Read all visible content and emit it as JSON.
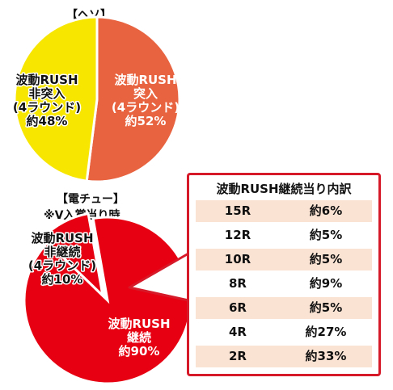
{
  "colors": {
    "heso_rush": "#e8633f",
    "heso_non_rush": "#f7e600",
    "denchu_continue": "#e60012",
    "denchu_non_continue": "#e60012",
    "panel_border": "#d61a2a",
    "row_fill": "#fbe3d3",
    "label_text_light": "#ffffff",
    "label_text_dark": "#111111"
  },
  "heso": {
    "heading": "【ヘソ】"
  },
  "denchu": {
    "heading": "【電チュー】",
    "subheading": "※V入賞当り時"
  },
  "chart_data": [
    {
      "type": "pie",
      "title": "【ヘソ】",
      "slices": [
        {
          "label_lines": [
            "波動RUSH",
            "突入",
            "(4ラウンド)",
            "約52%"
          ],
          "value": 52
        },
        {
          "label_lines": [
            "波動RUSH",
            "非突入",
            "(4ラウンド)",
            "約48%"
          ],
          "value": 48
        }
      ]
    },
    {
      "type": "pie",
      "title": "【電チュー】",
      "subtitle": "※V入賞当り時",
      "slices": [
        {
          "label_lines": [
            "波動RUSH",
            "継続",
            "約90%"
          ],
          "value": 90
        },
        {
          "label_lines": [
            "波動RUSH",
            "非継続",
            "(4ラウンド)",
            "約10%"
          ],
          "value": 10
        }
      ]
    },
    {
      "type": "table",
      "title": "波動RUSH継続当り内訳",
      "rows": [
        {
          "round": "15R",
          "rate": "約6%"
        },
        {
          "round": "12R",
          "rate": "約5%"
        },
        {
          "round": "10R",
          "rate": "約5%"
        },
        {
          "round": "8R",
          "rate": "約9%"
        },
        {
          "round": "6R",
          "rate": "約5%"
        },
        {
          "round": "4R",
          "rate": "約27%"
        },
        {
          "round": "2R",
          "rate": "約33%"
        }
      ]
    }
  ]
}
